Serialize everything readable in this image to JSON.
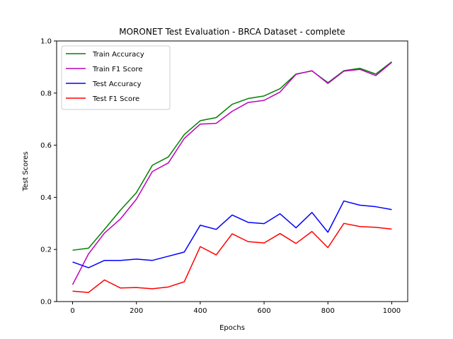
{
  "chart_data": {
    "type": "line",
    "title": "MORONET Test Evaluation - BRCA Dataset - complete",
    "xlabel": "Epochs",
    "ylabel": "Test Scores",
    "xlim": [
      -50,
      1050
    ],
    "ylim": [
      0,
      1.0
    ],
    "xticks": [
      0,
      200,
      400,
      600,
      800,
      1000
    ],
    "xtick_labels": [
      "0",
      "200",
      "400",
      "600",
      "800",
      "1000"
    ],
    "yticks": [
      0,
      0.2,
      0.4,
      0.6,
      0.8,
      1.0
    ],
    "ytick_labels": [
      "0.0",
      "0.2",
      "0.4",
      "0.6",
      "0.8",
      "1.0"
    ],
    "grid": false,
    "legend_position": "top-left",
    "x": [
      0,
      50,
      100,
      150,
      200,
      250,
      300,
      350,
      400,
      450,
      500,
      550,
      600,
      650,
      700,
      750,
      800,
      850,
      900,
      950,
      1000
    ],
    "series": [
      {
        "name": "Train Accuracy",
        "color": "#008000",
        "values": [
          0.197,
          0.205,
          0.277,
          0.351,
          0.418,
          0.523,
          0.555,
          0.641,
          0.694,
          0.706,
          0.757,
          0.779,
          0.789,
          0.817,
          0.873,
          0.885,
          0.84,
          0.886,
          0.895,
          0.873,
          0.92
        ]
      },
      {
        "name": "Train F1 Score",
        "color": "#bf00bf",
        "values": [
          0.065,
          0.183,
          0.263,
          0.317,
          0.393,
          0.499,
          0.532,
          0.626,
          0.681,
          0.684,
          0.73,
          0.764,
          0.772,
          0.804,
          0.872,
          0.886,
          0.837,
          0.884,
          0.891,
          0.867,
          0.918
        ]
      },
      {
        "name": "Test Accuracy",
        "color": "#0000ff",
        "values": [
          0.152,
          0.13,
          0.158,
          0.158,
          0.163,
          0.158,
          0.174,
          0.19,
          0.293,
          0.277,
          0.332,
          0.304,
          0.299,
          0.337,
          0.283,
          0.342,
          0.266,
          0.386,
          0.37,
          0.364,
          0.353
        ]
      },
      {
        "name": "Test F1 Score",
        "color": "#ff0000",
        "values": [
          0.04,
          0.035,
          0.083,
          0.052,
          0.054,
          0.049,
          0.056,
          0.076,
          0.211,
          0.179,
          0.26,
          0.23,
          0.225,
          0.261,
          0.223,
          0.269,
          0.207,
          0.3,
          0.288,
          0.285,
          0.278
        ]
      }
    ]
  }
}
